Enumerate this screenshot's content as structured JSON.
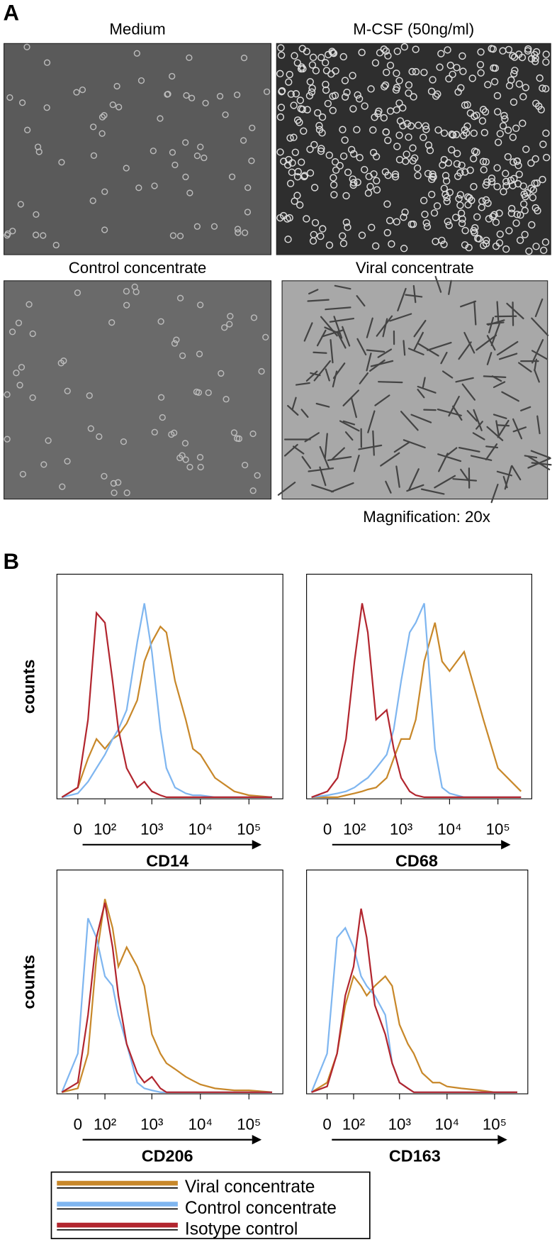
{
  "panel_a": {
    "label": "A",
    "images": [
      {
        "title": "Medium"
      },
      {
        "title": "M-CSF (50ng/ml)"
      },
      {
        "title": "Control concentrate"
      },
      {
        "title": "Viral concentrate"
      }
    ],
    "note": "Magnification: 20x"
  },
  "panel_b": {
    "label": "B"
  },
  "legend": [
    {
      "name": "Viral concentrate",
      "color": "#c8882a"
    },
    {
      "name": "Control concentrate",
      "color": "#7fb6f0"
    },
    {
      "name": "Isotype control",
      "color": "#b2262f"
    }
  ],
  "chart_data": [
    {
      "type": "line",
      "xscale": "logicle",
      "xlabel": "CD14",
      "ylabel": "counts",
      "x": [
        -50,
        0,
        30,
        60,
        100,
        150,
        200,
        300,
        500,
        700,
        1000,
        1500,
        2000,
        3000,
        5000,
        7000,
        10000,
        20000,
        50000,
        100000,
        300000
      ],
      "xlim": [
        -70,
        500000
      ],
      "ylim": [
        0,
        115
      ],
      "xticks": [
        0,
        {
          "value": 100,
          "label": "10²"
        },
        {
          "value": 1000,
          "label": "10³"
        },
        {
          "value": 10000,
          "label": "10⁴"
        },
        {
          "value": 100000,
          "label": "10⁵"
        }
      ],
      "series": [
        {
          "values": [
            0,
            5,
            20,
            30,
            25,
            30,
            32,
            38,
            50,
            70,
            80,
            88,
            85,
            60,
            40,
            25,
            22,
            10,
            3,
            1,
            0
          ]
        },
        {
          "values": [
            0,
            2,
            8,
            15,
            22,
            30,
            35,
            45,
            80,
            100,
            75,
            35,
            15,
            5,
            2,
            1,
            1,
            0,
            0,
            0,
            0
          ]
        },
        {
          "values": [
            0,
            5,
            40,
            95,
            90,
            60,
            35,
            15,
            5,
            8,
            3,
            1,
            0,
            0,
            0,
            0,
            0,
            0,
            0,
            0,
            0
          ]
        }
      ]
    },
    {
      "type": "line",
      "xscale": "logicle",
      "xlabel": "CD68",
      "x": [
        -50,
        0,
        30,
        60,
        100,
        150,
        200,
        300,
        500,
        700,
        1000,
        1500,
        2000,
        3000,
        5000,
        7000,
        10000,
        20000,
        50000,
        100000,
        300000
      ],
      "xlim": [
        -70,
        500000
      ],
      "ylim": [
        0,
        115
      ],
      "xticks": [
        0,
        {
          "value": 100,
          "label": "10²"
        },
        {
          "value": 1000,
          "label": "10³"
        },
        {
          "value": 10000,
          "label": "10⁴"
        },
        {
          "value": 100000,
          "label": "10⁵"
        }
      ],
      "series": [
        {
          "values": [
            0,
            0,
            0,
            1,
            2,
            3,
            4,
            5,
            10,
            20,
            30,
            30,
            40,
            70,
            90,
            70,
            65,
            75,
            40,
            15,
            3
          ]
        },
        {
          "values": [
            0,
            1,
            2,
            3,
            5,
            8,
            10,
            15,
            22,
            35,
            60,
            85,
            90,
            100,
            25,
            5,
            2,
            0,
            0,
            0,
            0
          ]
        },
        {
          "values": [
            0,
            3,
            10,
            30,
            70,
            100,
            85,
            40,
            45,
            25,
            10,
            3,
            1,
            0,
            0,
            0,
            0,
            0,
            0,
            0,
            0
          ]
        }
      ]
    },
    {
      "type": "line",
      "xscale": "logicle",
      "xlabel": "CD206",
      "ylabel": "counts",
      "x": [
        -50,
        0,
        30,
        60,
        100,
        150,
        200,
        300,
        500,
        700,
        1000,
        1500,
        2000,
        3000,
        5000,
        7000,
        10000,
        20000,
        50000,
        100000,
        300000
      ],
      "xlim": [
        -70,
        500000
      ],
      "ylim": [
        0,
        115
      ],
      "xticks": [
        0,
        {
          "value": 100,
          "label": "10²"
        },
        {
          "value": 1000,
          "label": "10³"
        },
        {
          "value": 10000,
          "label": "10⁴"
        },
        {
          "value": 100000,
          "label": "10⁵"
        }
      ],
      "series": [
        {
          "values": [
            0,
            2,
            20,
            70,
            100,
            85,
            65,
            75,
            65,
            55,
            30,
            20,
            15,
            12,
            8,
            6,
            4,
            2,
            1,
            1,
            0
          ]
        },
        {
          "values": [
            0,
            20,
            90,
            80,
            60,
            55,
            40,
            25,
            5,
            2,
            1,
            0,
            0,
            0,
            0,
            0,
            0,
            0,
            0,
            0,
            0
          ]
        },
        {
          "values": [
            0,
            5,
            40,
            80,
            98,
            75,
            50,
            25,
            10,
            5,
            8,
            2,
            0,
            0,
            0,
            0,
            0,
            0,
            0,
            0,
            0
          ]
        }
      ]
    },
    {
      "type": "line",
      "xscale": "logicle",
      "xlabel": "CD163",
      "x": [
        -50,
        0,
        30,
        60,
        100,
        150,
        200,
        300,
        500,
        700,
        1000,
        1500,
        2000,
        3000,
        5000,
        7000,
        10000,
        20000,
        50000,
        100000,
        300000
      ],
      "xlim": [
        -70,
        500000
      ],
      "ylim": [
        0,
        115
      ],
      "xticks": [
        0,
        {
          "value": 100,
          "label": "10²"
        },
        {
          "value": 1000,
          "label": "10³"
        },
        {
          "value": 10000,
          "label": "10⁴"
        },
        {
          "value": 100000,
          "label": "10⁵"
        }
      ],
      "series": [
        {
          "values": [
            0,
            5,
            20,
            45,
            60,
            55,
            50,
            55,
            60,
            55,
            35,
            25,
            20,
            10,
            5,
            5,
            3,
            2,
            1,
            0,
            0
          ]
        },
        {
          "values": [
            0,
            20,
            80,
            85,
            75,
            60,
            55,
            50,
            40,
            15,
            5,
            2,
            0,
            0,
            0,
            0,
            0,
            0,
            0,
            0,
            0
          ]
        },
        {
          "values": [
            0,
            3,
            20,
            50,
            65,
            95,
            80,
            45,
            30,
            15,
            5,
            2,
            0,
            0,
            0,
            0,
            0,
            0,
            0,
            0,
            0
          ]
        }
      ]
    }
  ]
}
